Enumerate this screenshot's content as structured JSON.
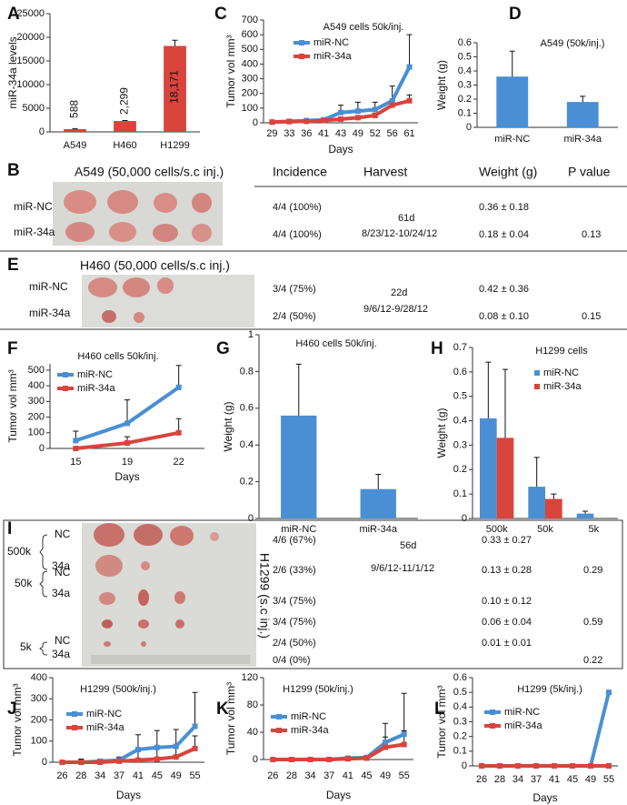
{
  "chart_data": [
    {
      "type": "bar",
      "label": "A",
      "ylabel": "miR-34a levels",
      "categories": [
        "A549",
        "H460",
        "H1299"
      ],
      "values": [
        588,
        2299,
        18171
      ],
      "value_labels": [
        "588",
        "2,299",
        "18,171"
      ],
      "errors": [
        100,
        100,
        1200
      ],
      "color": "#d9443c",
      "ylim": [
        0,
        25000
      ],
      "yticks": [
        0,
        5000,
        10000,
        15000,
        20000,
        25000
      ]
    },
    {
      "type": "line",
      "label": "C",
      "title": "A549 cells 50k/inj.",
      "ylabel": "Tumor vol mm³",
      "xlabel": "Days",
      "categories": [
        "29",
        "33",
        "36",
        "41",
        "43",
        "49",
        "52",
        "56",
        "61"
      ],
      "series": [
        {
          "name": "miR-NC",
          "color": "#4a8fd4",
          "values": [
            5,
            10,
            15,
            20,
            70,
            80,
            90,
            150,
            380
          ],
          "errors": [
            0,
            0,
            5,
            10,
            50,
            60,
            50,
            100,
            220
          ]
        },
        {
          "name": "miR-34a",
          "color": "#d9443c",
          "values": [
            5,
            8,
            10,
            15,
            25,
            35,
            50,
            120,
            150
          ],
          "errors": [
            0,
            0,
            0,
            5,
            10,
            10,
            15,
            30,
            40
          ]
        }
      ],
      "ylim": [
        0,
        700
      ],
      "yticks": [
        0,
        100,
        200,
        300,
        400,
        500,
        600,
        700
      ]
    },
    {
      "type": "bar",
      "label": "D",
      "title": "A549 (50k/inj.)",
      "ylabel": "Weight (g)",
      "categories": [
        "miR-NC",
        "miR-34a"
      ],
      "values": [
        0.36,
        0.18
      ],
      "errors": [
        0.18,
        0.04
      ],
      "color": "#4a8fd4",
      "ylim": [
        0,
        0.6
      ],
      "yticks": [
        0,
        0.1,
        0.2,
        0.3,
        0.4,
        0.5,
        0.6
      ]
    },
    {
      "type": "line",
      "label": "F",
      "title": "H460 cells 50k/inj.",
      "ylabel": "Tumor vol mm³",
      "xlabel": "Days",
      "categories": [
        "15",
        "19",
        "22"
      ],
      "series": [
        {
          "name": "miR-NC",
          "color": "#4a8fd4",
          "values": [
            50,
            160,
            390
          ],
          "errors": [
            60,
            150,
            140
          ]
        },
        {
          "name": "miR-34a",
          "color": "#d9443c",
          "values": [
            0,
            35,
            100
          ],
          "errors": [
            0,
            40,
            90
          ]
        }
      ],
      "ylim": [
        0,
        540
      ],
      "yticks": [
        0,
        100,
        200,
        300,
        400,
        500
      ]
    },
    {
      "type": "bar",
      "label": "G",
      "title": "H460 cells 50k/inj.",
      "ylabel": "Weight (g)",
      "categories": [
        "miR-NC",
        "miR-34a"
      ],
      "values": [
        0.56,
        0.16
      ],
      "errors": [
        0.28,
        0.08
      ],
      "color": "#4a8fd4",
      "ylim": [
        0,
        1
      ],
      "yticks": [
        0,
        0.2,
        0.4,
        0.6,
        0.8,
        1
      ]
    },
    {
      "type": "bar",
      "label": "H",
      "title": "H1299 cells",
      "ylabel": "Weight (g)",
      "categories": [
        "500k",
        "50k",
        "5k"
      ],
      "series": [
        {
          "name": "miR-NC",
          "color": "#4a8fd4",
          "values": [
            0.41,
            0.13,
            0.02
          ],
          "errors": [
            0.23,
            0.12,
            0.01
          ]
        },
        {
          "name": "miR-34a",
          "color": "#d9443c",
          "values": [
            0.33,
            0.08,
            0
          ],
          "errors": [
            0.28,
            0.02,
            0
          ]
        }
      ],
      "ylim": [
        0,
        0.7
      ],
      "yticks": [
        0,
        0.1,
        0.2,
        0.3,
        0.4,
        0.5,
        0.6,
        0.7
      ]
    },
    {
      "type": "line",
      "label": "J",
      "title": "H1299 (500k/inj.)",
      "ylabel": "Tumor vol mm³",
      "xlabel": "Days",
      "categories": [
        "26",
        "28",
        "34",
        "37",
        "41",
        "45",
        "49",
        "55"
      ],
      "series": [
        {
          "name": "miR-NC",
          "color": "#4a8fd4",
          "values": [
            0,
            0,
            5,
            10,
            60,
            70,
            75,
            170
          ],
          "errors": [
            0,
            10,
            10,
            15,
            70,
            80,
            80,
            160
          ]
        },
        {
          "name": "miR-34a",
          "color": "#d9443c",
          "values": [
            0,
            0,
            0,
            5,
            10,
            15,
            25,
            65
          ],
          "errors": [
            0,
            15,
            10,
            10,
            40,
            50,
            50,
            60
          ]
        }
      ],
      "ylim": [
        0,
        400
      ],
      "yticks": [
        0,
        100,
        200,
        300,
        400
      ]
    },
    {
      "type": "line",
      "label": "K",
      "title": "H1299 (50k/inj.)",
      "ylabel": "Tumor vol mm³",
      "xlabel": "Days",
      "categories": [
        "26",
        "28",
        "34",
        "37",
        "41",
        "45",
        "49",
        "55"
      ],
      "series": [
        {
          "name": "miR-NC",
          "color": "#4a8fd4",
          "values": [
            0,
            0,
            0,
            0,
            2,
            3,
            25,
            37
          ],
          "errors": [
            0,
            0,
            0,
            0,
            2,
            3,
            28,
            60
          ]
        },
        {
          "name": "miR-34a",
          "color": "#d9443c",
          "values": [
            0,
            0,
            0,
            0,
            1,
            2,
            18,
            22
          ],
          "errors": [
            0,
            0,
            0,
            0,
            1,
            2,
            15,
            20
          ]
        }
      ],
      "ylim": [
        0,
        120
      ],
      "yticks": [
        0,
        40,
        80,
        120
      ]
    },
    {
      "type": "line",
      "label": "L",
      "title": "H1299 (5k/inj.)",
      "ylabel": "Tumor vol mm³",
      "xlabel": "Days",
      "categories": [
        "26",
        "28",
        "34",
        "37",
        "41",
        "45",
        "49",
        "55"
      ],
      "series": [
        {
          "name": "miR-NC",
          "color": "#4a8fd4",
          "values": [
            0,
            0,
            0,
            0,
            0,
            0,
            0,
            0.5
          ],
          "errors": [
            0,
            0,
            0,
            0,
            0,
            0,
            0,
            0
          ]
        },
        {
          "name": "miR-34a",
          "color": "#d9443c",
          "values": [
            0,
            0,
            0,
            0,
            0,
            0,
            0,
            0
          ],
          "errors": [
            0,
            0,
            0,
            0,
            0,
            0,
            0,
            0
          ]
        }
      ],
      "ylim": [
        0,
        0.6
      ],
      "yticks": [
        0,
        0.1,
        0.2,
        0.3,
        0.4,
        0.5,
        0.6
      ]
    }
  ],
  "tables": [
    {
      "label": "B",
      "title": "A549 (50,000 cells/s.c inj.)",
      "columns": [
        "Incidence",
        "Harvest",
        "Weight (g)",
        "P value"
      ],
      "rows": [
        {
          "group": "miR-NC",
          "incidence": "4/4 (100%)",
          "weight": "0.36 ± 0.18"
        },
        {
          "group": "miR-34a",
          "incidence": "4/4 (100%)",
          "weight": "0.18 ± 0.04",
          "p": "0.13"
        }
      ],
      "harvest": [
        "61d",
        "8/23/12-10/24/12"
      ]
    },
    {
      "label": "E",
      "title": "H460 (50,000 cells/s.c inj.)",
      "rows": [
        {
          "group": "miR-NC",
          "incidence": "3/4 (75%)",
          "weight": "0.42 ± 0.36"
        },
        {
          "group": "miR-34a",
          "incidence": "2/4 (50%)",
          "weight": "0.08 ± 0.10",
          "p": "0.15"
        }
      ],
      "harvest": [
        "22d",
        "9/6/12-9/28/12"
      ]
    },
    {
      "label": "I",
      "title": "H1299 (s.c inj.)",
      "groups": [
        "500k",
        "50k",
        "5k"
      ],
      "rows": [
        {
          "group": "NC",
          "incidence": "4/6 (67%)",
          "weight": "0.33 ± 0.27"
        },
        {
          "group": "34a",
          "incidence": "2/6 (33%)",
          "weight": "0.13 ± 0.28",
          "p": "0.29"
        },
        {
          "group": "NC",
          "incidence": "3/4 (75%)",
          "weight": "0.10 ± 0.12"
        },
        {
          "group": "34a",
          "incidence": "3/4 (75%)",
          "weight": "0.06 ± 0.04",
          "p": "0.59"
        },
        {
          "group": "NC",
          "incidence": "2/4 (50%)",
          "weight": "0.01 ± 0.01"
        },
        {
          "group": "34a",
          "incidence": "0/4 (0%)",
          "p": "0.22"
        }
      ],
      "harvest": [
        "56d",
        "9/6/12-11/1/12"
      ]
    }
  ]
}
